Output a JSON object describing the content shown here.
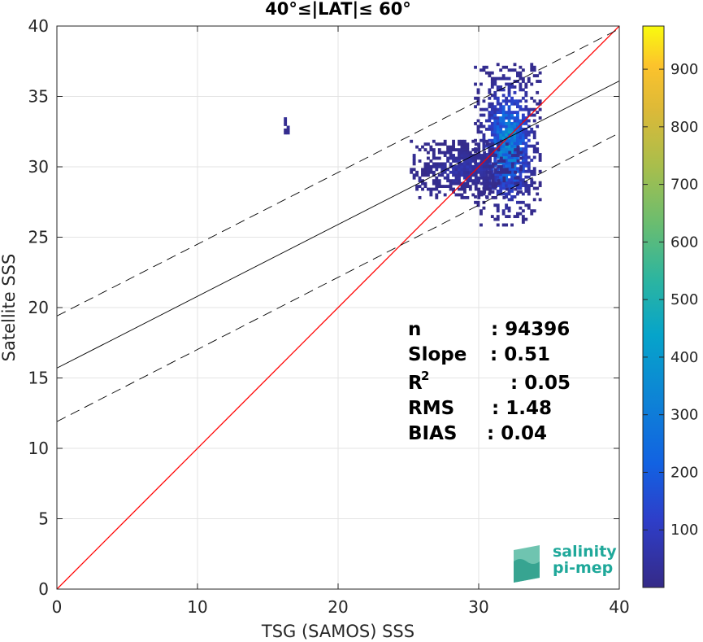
{
  "chart_data": {
    "type": "heatmap",
    "title": "40°≤|LAT|≤ 60°",
    "xlabel": "TSG (SAMOS) SSS",
    "ylabel": "Satellite SSS",
    "xlim": [
      0,
      40
    ],
    "ylim": [
      0,
      40
    ],
    "xticks": [
      "0",
      "10",
      "20",
      "30",
      "40"
    ],
    "yticks": [
      "0",
      "5",
      "10",
      "15",
      "20",
      "25",
      "30",
      "35",
      "40"
    ],
    "grid": true,
    "colorbar": {
      "range": [
        0,
        975
      ],
      "ticks": [
        "100",
        "200",
        "300",
        "400",
        "500",
        "600",
        "700",
        "800",
        "900"
      ],
      "colormap": "parula"
    },
    "density_clusters": [
      {
        "x_center": 32.0,
        "y_center": 31.5,
        "x_spread": 0.9,
        "y_spread": 2.2,
        "peak": 320
      },
      {
        "x_center": 29.0,
        "y_center": 29.8,
        "x_spread": 1.5,
        "y_spread": 0.8,
        "peak": 60
      },
      {
        "x_center": 16.2,
        "y_center": 32.9,
        "x_spread": 0.1,
        "y_spread": 0.3,
        "peak": 20
      }
    ],
    "lines": [
      {
        "name": "one-to-one",
        "color": "#ff0000",
        "style": "solid",
        "x": [
          0,
          40
        ],
        "y": [
          0,
          40
        ]
      },
      {
        "name": "regression",
        "color": "#000000",
        "style": "solid",
        "x": [
          0,
          40
        ],
        "y": [
          15.7,
          36.1
        ]
      },
      {
        "name": "regression-upper",
        "color": "#000000",
        "style": "dashed",
        "x": [
          0,
          40
        ],
        "y": [
          19.4,
          39.8
        ]
      },
      {
        "name": "regression-lower",
        "color": "#000000",
        "style": "dashed",
        "x": [
          0,
          40
        ],
        "y": [
          11.9,
          32.4
        ]
      }
    ],
    "stats": [
      {
        "label": "n",
        "value": ": 94396"
      },
      {
        "label": "Slope",
        "value": ": 0.51"
      },
      {
        "label": "R",
        "sup": "2",
        "value": ": 0.05"
      },
      {
        "label": "RMS",
        "value": ": 1.48"
      },
      {
        "label": "BIAS",
        "value": ": 0.04"
      }
    ]
  },
  "logo": {
    "line1": "salinity",
    "line2": "pi-mep"
  }
}
